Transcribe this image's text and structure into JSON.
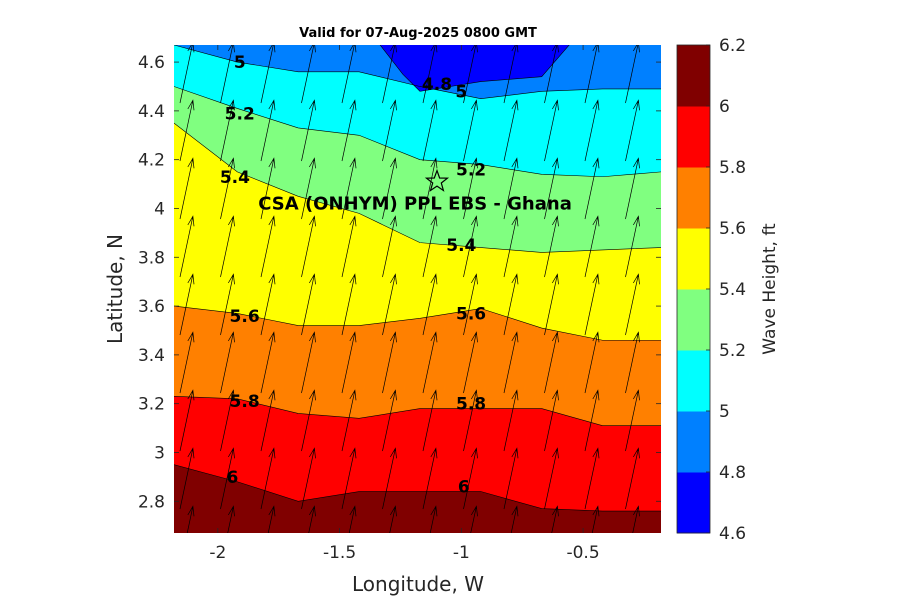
{
  "chart_data": {
    "type": "contour",
    "title": "Valid for 07-Aug-2025 0800 GMT",
    "xlabel": "Longitude, W",
    "ylabel": "Latitude, N",
    "xlim": [
      -2.18,
      -0.18
    ],
    "ylim": [
      2.67,
      4.67
    ],
    "x_ticks": [
      -2,
      -1.5,
      -1,
      -0.5
    ],
    "x_tick_labels": [
      "-2",
      "-1.5",
      "-1",
      "-0.5"
    ],
    "y_ticks": [
      2.8,
      3.0,
      3.2,
      3.4,
      3.6,
      3.8,
      4.0,
      4.2,
      4.4,
      4.6
    ],
    "y_tick_labels": [
      "2.8",
      "3",
      "3.2",
      "3.4",
      "3.6",
      "3.8",
      "4",
      "4.2",
      "4.4",
      "4.6"
    ],
    "colorbar": {
      "label": "Wave Height, ft",
      "levels": [
        4.6,
        4.8,
        5.0,
        5.2,
        5.4,
        5.6,
        5.8,
        6.0,
        6.2
      ],
      "tick_labels": [
        "4.6",
        "4.8",
        "5",
        "5.2",
        "5.4",
        "5.6",
        "5.8",
        "6",
        "6.2"
      ],
      "colors": [
        "#0000ff",
        "#0080ff",
        "#00ffff",
        "#80ff80",
        "#ffff00",
        "#ff8000",
        "#ff0000",
        "#800000"
      ]
    },
    "contour_x": [
      -2.18,
      -1.92,
      -1.67,
      -1.42,
      -1.17,
      -0.92,
      -0.67,
      -0.42,
      -0.18
    ],
    "contours": [
      {
        "level": 4.8,
        "y": [
          null,
          null,
          null,
          null,
          4.48,
          4.52,
          4.54,
          null,
          null
        ],
        "x_start": -1.34,
        "x_end": -0.55
      },
      {
        "level": 5.0,
        "y": [
          4.67,
          4.6,
          4.56,
          4.56,
          4.5,
          4.45,
          4.48,
          4.49,
          4.49
        ]
      },
      {
        "level": 5.2,
        "y": [
          4.5,
          4.41,
          4.33,
          4.3,
          4.2,
          4.18,
          4.14,
          4.13,
          4.15
        ]
      },
      {
        "level": 5.4,
        "y": [
          4.35,
          4.15,
          4.05,
          3.98,
          3.86,
          3.84,
          3.82,
          3.83,
          3.84
        ]
      },
      {
        "level": 5.6,
        "y": [
          3.6,
          3.57,
          3.52,
          3.52,
          3.55,
          3.59,
          3.51,
          3.46,
          3.46
        ]
      },
      {
        "level": 5.8,
        "y": [
          3.23,
          3.22,
          3.16,
          3.14,
          3.18,
          3.18,
          3.18,
          3.11,
          3.11
        ]
      },
      {
        "level": 6.0,
        "y": [
          2.95,
          2.88,
          2.8,
          2.84,
          2.84,
          2.84,
          2.77,
          2.76,
          2.76
        ]
      }
    ],
    "contour_labels": [
      {
        "text": "5",
        "x": -1.91,
        "y": 4.6
      },
      {
        "text": "4.8",
        "x": -1.1,
        "y": 4.51
      },
      {
        "text": "5",
        "x": -1.0,
        "y": 4.48
      },
      {
        "text": "5.2",
        "x": -1.91,
        "y": 4.39
      },
      {
        "text": "5.2",
        "x": -0.96,
        "y": 4.16
      },
      {
        "text": "5.4",
        "x": -1.93,
        "y": 4.13
      },
      {
        "text": "5.4",
        "x": -1.0,
        "y": 3.85
      },
      {
        "text": "5.6",
        "x": -1.89,
        "y": 3.56
      },
      {
        "text": "5.6",
        "x": -0.96,
        "y": 3.57
      },
      {
        "text": "5.8",
        "x": -1.89,
        "y": 3.21
      },
      {
        "text": "5.8",
        "x": -0.96,
        "y": 3.2
      },
      {
        "text": "6",
        "x": -1.94,
        "y": 2.9
      },
      {
        "text": "6",
        "x": -0.99,
        "y": 2.86
      }
    ],
    "site": {
      "name": "CSA (ONHYM) PPL EBS  - Ghana",
      "lon": -1.1,
      "lat": 4.11
    },
    "arrow_direction_deg": 12,
    "grid": false,
    "legend": "colorbar-right"
  }
}
